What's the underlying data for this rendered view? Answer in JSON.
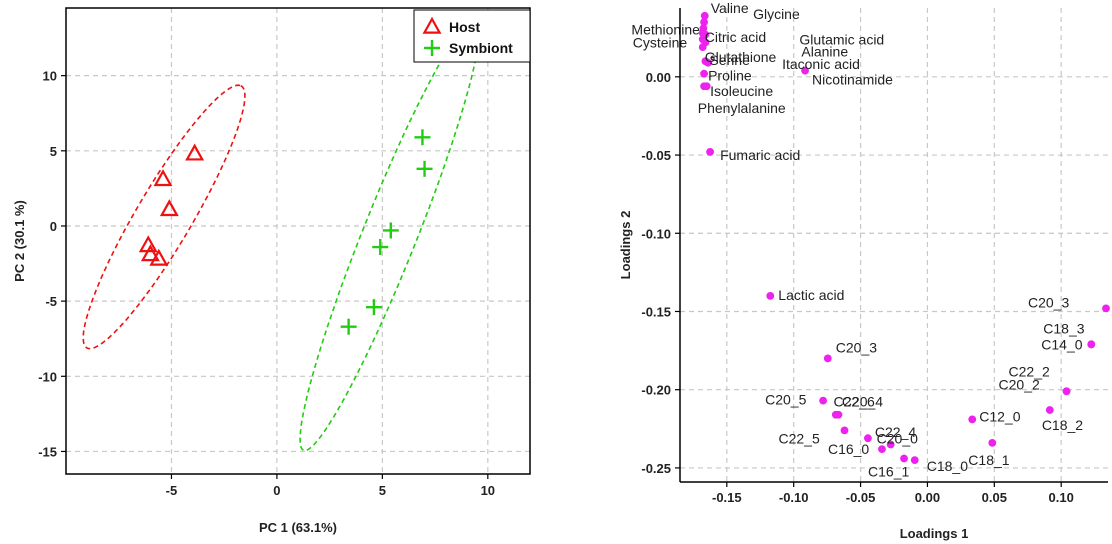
{
  "chart_data": [
    {
      "type": "scatter",
      "title": "",
      "xlabel": "PC 1 (63.1%)",
      "ylabel": "PC 2 (30.1 %)",
      "xlim": [
        -10,
        12
      ],
      "ylim": [
        -16.5,
        14.5
      ],
      "xticks": [
        -5,
        0,
        5,
        10
      ],
      "yticks": [
        -15,
        -10,
        -5,
        0,
        5,
        10
      ],
      "grid": true,
      "legend_position": "top-right",
      "series": [
        {
          "name": "Host",
          "marker": "triangle",
          "color": "#ee1111",
          "points": [
            [
              -3.9,
              4.8
            ],
            [
              -5.4,
              3.1
            ],
            [
              -5.1,
              1.1
            ],
            [
              -6.1,
              -1.3
            ],
            [
              -6.0,
              -1.9
            ],
            [
              -5.6,
              -2.2
            ]
          ],
          "ellipse": {
            "cx": -5.35,
            "cy": 0.6,
            "rx": 9.46,
            "ry": 1.41,
            "angle_deg": 67.6
          }
        },
        {
          "name": "Symbiont",
          "marker": "plus",
          "color": "#22cc11",
          "points": [
            [
              6.9,
              5.9
            ],
            [
              7.0,
              3.8
            ],
            [
              5.4,
              -0.3
            ],
            [
              4.9,
              -1.4
            ],
            [
              4.6,
              -5.4
            ],
            [
              3.4,
              -6.7
            ]
          ],
          "ellipse": {
            "cx": 5.35,
            "cy": -0.6,
            "rx": 14.9,
            "ry": 1.32,
            "angle_deg": 74.2
          }
        }
      ]
    },
    {
      "type": "scatter",
      "title": "",
      "xlabel": "Loadings 1",
      "ylabel": "Loadings 2",
      "xlim": [
        -0.185,
        0.135
      ],
      "ylim": [
        -0.259,
        0.044
      ],
      "xticks": [
        -0.15,
        -0.1,
        -0.05,
        0.0,
        0.05,
        0.1
      ],
      "xtick_labels": [
        "-0.15",
        "-0.10",
        "-0.05",
        "0.00",
        "0.05",
        "0.10"
      ],
      "yticks": [
        0.0,
        -0.05,
        -0.1,
        -0.15,
        -0.2,
        -0.25
      ],
      "ytick_labels": [
        "0.00",
        "-0.05",
        "-0.10",
        "-0.15",
        "-0.20",
        "-0.25"
      ],
      "grid": true,
      "color": "#ee22ee",
      "points": [
        {
          "label": "Valine",
          "x": -0.1665,
          "y": 0.039
        },
        {
          "label": "Glycine",
          "x": -0.167,
          "y": 0.035
        },
        {
          "label": "Methionine",
          "x": -0.1675,
          "y": 0.031
        },
        {
          "label": "Citric acid",
          "x": -0.168,
          "y": 0.028
        },
        {
          "label": "Glutamic acid",
          "x": -0.166,
          "y": 0.027
        },
        {
          "label": "Cysteine",
          "x": -0.168,
          "y": 0.024
        },
        {
          "label": "Alanine",
          "x": -0.166,
          "y": 0.022
        },
        {
          "label": "Glutathione",
          "x": -0.168,
          "y": 0.019
        },
        {
          "label": "Serine",
          "x": -0.166,
          "y": 0.01
        },
        {
          "label": "Itaconic acid",
          "x": -0.164,
          "y": 0.009
        },
        {
          "label": "Nicotinamide",
          "x": -0.0915,
          "y": 0.004
        },
        {
          "label": "Proline",
          "x": -0.167,
          "y": 0.002
        },
        {
          "label": "Isoleucine",
          "x": -0.167,
          "y": -0.006
        },
        {
          "label": "Phenylalanine",
          "x": -0.165,
          "y": -0.006
        },
        {
          "label": "Fumaric acid",
          "x": -0.1625,
          "y": -0.048
        },
        {
          "label": "Lactic acid",
          "x": -0.1175,
          "y": -0.14
        },
        {
          "label": "C20_3",
          "x": -0.0745,
          "y": -0.18
        },
        {
          "label": "C22_6",
          "x": -0.0665,
          "y": -0.216
        },
        {
          "label": "C20_5",
          "x": -0.078,
          "y": -0.207
        },
        {
          "label": "C20_4",
          "x": -0.0685,
          "y": -0.216
        },
        {
          "label": "C22_5",
          "x": -0.062,
          "y": -0.226
        },
        {
          "label": "C22_4",
          "x": -0.0445,
          "y": -0.231
        },
        {
          "label": "C16_0",
          "x": -0.034,
          "y": -0.238
        },
        {
          "label": "C20_0",
          "x": -0.0275,
          "y": -0.235
        },
        {
          "label": "C16_1",
          "x": -0.0175,
          "y": -0.244
        },
        {
          "label": "C18_0",
          "x": -0.0095,
          "y": -0.245
        },
        {
          "label": "C12_0",
          "x": 0.0335,
          "y": -0.219
        },
        {
          "label": "C18_1",
          "x": 0.0485,
          "y": -0.234
        },
        {
          "label": "C20_2",
          "x": 0.104,
          "y": -0.201
        },
        {
          "label": "C18_2",
          "x": 0.0915,
          "y": -0.213
        },
        {
          "label": "C22_2",
          "x": 0.104,
          "y": -0.201
        },
        {
          "label": "C14_0",
          "x": 0.1225,
          "y": -0.171
        },
        {
          "label": "C18_3",
          "x": 0.1225,
          "y": -0.171
        },
        {
          "label": "C20_3",
          "x": 0.1335,
          "y": -0.148
        }
      ]
    }
  ]
}
